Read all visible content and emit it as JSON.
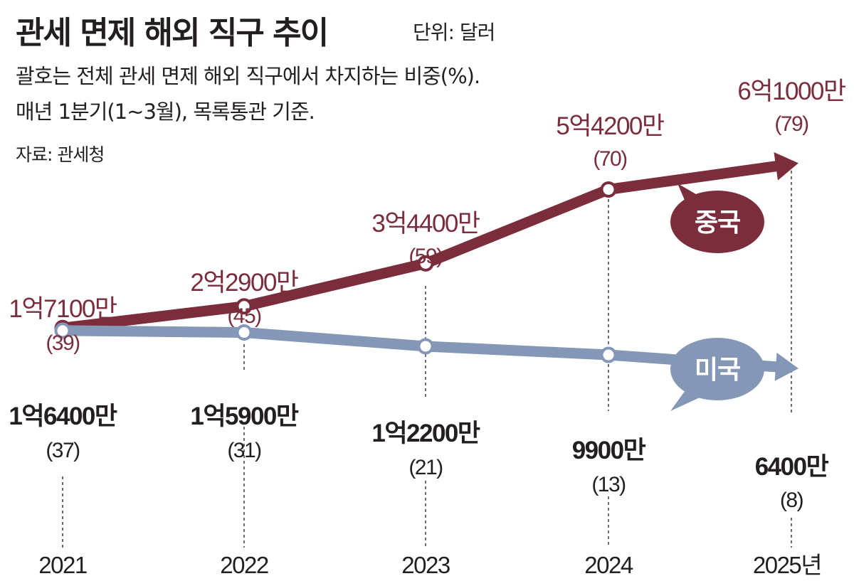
{
  "title": "관세 면제 해외 직구 추이",
  "unit": "단위: 달러",
  "note_line1": "괄호는 전체 관세 면제 해외 직구에서 차지하는 비중(%).",
  "note_line2": "매년 1분기(1∼3월), 목록통관 기준.",
  "source": "자료: 관세청",
  "colors": {
    "china": "#7c2d3b",
    "usa": "#8597b7",
    "text": "#231f20"
  },
  "chart_data": {
    "type": "line",
    "title": "관세 면제 해외 직구 추이",
    "x": [
      "2021",
      "2022",
      "2023",
      "2024",
      "2025"
    ],
    "tick_labels": [
      "2021",
      "2022",
      "2023",
      "2024",
      "2025년"
    ],
    "series": [
      {
        "name": "중국",
        "values": [
          171000000,
          229000000,
          344000000,
          542000000,
          610000000
        ],
        "value_labels": [
          "1억7100만",
          "2억2900만",
          "3억4400만",
          "5억4200만",
          "6억1000만"
        ],
        "share_labels": [
          "(39)",
          "(45)",
          "(59)",
          "(70)",
          "(79)"
        ]
      },
      {
        "name": "미국",
        "values": [
          164000000,
          159000000,
          122000000,
          99000000,
          64000000
        ],
        "value_labels": [
          "1억6400만",
          "1억5900만",
          "1억2200만",
          "9900만",
          "6400만"
        ],
        "share_labels": [
          "(37)",
          "(31)",
          "(21)",
          "(13)",
          "(8)"
        ]
      }
    ]
  }
}
